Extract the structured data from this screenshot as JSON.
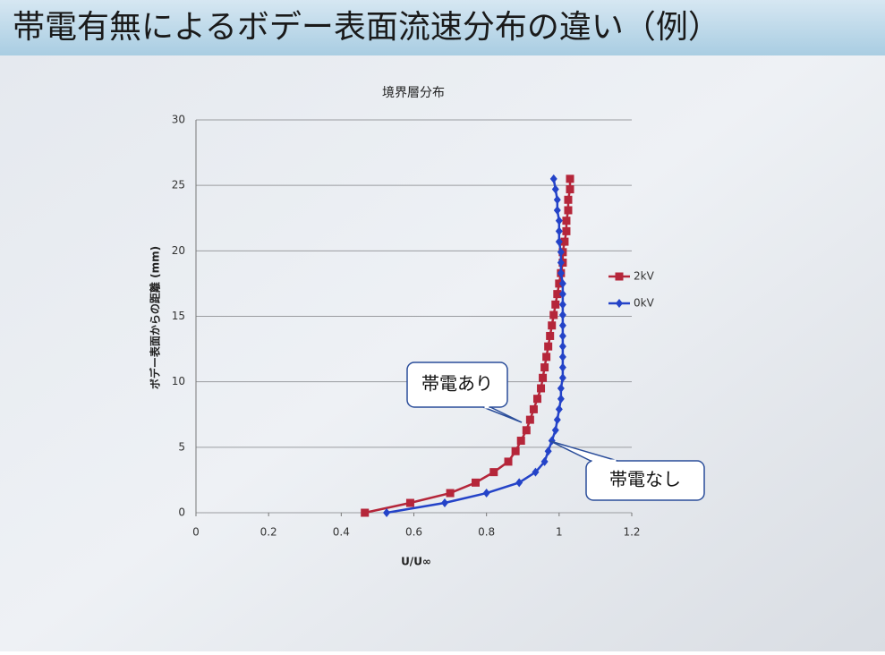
{
  "slide": {
    "title": "帯電有無によるボデー表面流速分布の違い（例）"
  },
  "chart_data": {
    "type": "line",
    "title": "境界層分布",
    "x_label": "U/U∞",
    "y_label": "ボデー表面からの距離 (mm)",
    "xlim": [
      0,
      1.2
    ],
    "xticks": [
      0,
      0.2,
      0.4,
      0.6,
      0.8,
      1,
      1.2
    ],
    "ylim": [
      0,
      30
    ],
    "yticks": [
      0,
      5,
      10,
      15,
      20,
      25,
      30
    ],
    "grid": true,
    "legend": "right",
    "series": [
      {
        "name": "2kV",
        "color": "#b5263a",
        "marker": "square",
        "x": [
          0.465,
          0.59,
          0.7,
          0.77,
          0.82,
          0.86,
          0.88,
          0.895,
          0.91,
          0.92,
          0.93,
          0.94,
          0.95,
          0.955,
          0.96,
          0.965,
          0.97,
          0.975,
          0.98,
          0.985,
          0.99,
          0.995,
          1.0,
          1.005,
          1.01,
          1.01,
          1.015,
          1.02,
          1.02,
          1.025,
          1.025,
          1.03,
          1.03
        ],
        "values": [
          0,
          0.75,
          1.5,
          2.3,
          3.1,
          3.9,
          4.7,
          5.5,
          6.3,
          7.1,
          7.9,
          8.7,
          9.5,
          10.3,
          11.1,
          11.9,
          12.7,
          13.5,
          14.3,
          15.1,
          15.9,
          16.7,
          17.5,
          18.3,
          19.1,
          19.9,
          20.7,
          21.5,
          22.3,
          23.1,
          23.9,
          24.7,
          25.5
        ]
      },
      {
        "name": "0kV",
        "color": "#2443c8",
        "marker": "diamond",
        "x": [
          0.525,
          0.685,
          0.8,
          0.89,
          0.935,
          0.96,
          0.97,
          0.98,
          0.99,
          0.995,
          1.0,
          1.005,
          1.005,
          1.01,
          1.01,
          1.01,
          1.01,
          1.01,
          1.01,
          1.01,
          1.01,
          1.01,
          1.01,
          1.005,
          1.005,
          1.005,
          1.0,
          1.0,
          1.0,
          0.995,
          0.995,
          0.99,
          0.985
        ],
        "values": [
          0,
          0.75,
          1.5,
          2.3,
          3.1,
          3.9,
          4.7,
          5.5,
          6.3,
          7.1,
          7.9,
          8.7,
          9.5,
          10.3,
          11.1,
          11.9,
          12.7,
          13.5,
          14.3,
          15.1,
          15.9,
          16.7,
          17.5,
          18.3,
          19.1,
          19.9,
          20.7,
          21.5,
          22.3,
          23.1,
          23.9,
          24.7,
          25.5
        ]
      }
    ],
    "annotations": [
      {
        "text": "帯電あり"
      },
      {
        "text": "帯電なし"
      }
    ]
  }
}
